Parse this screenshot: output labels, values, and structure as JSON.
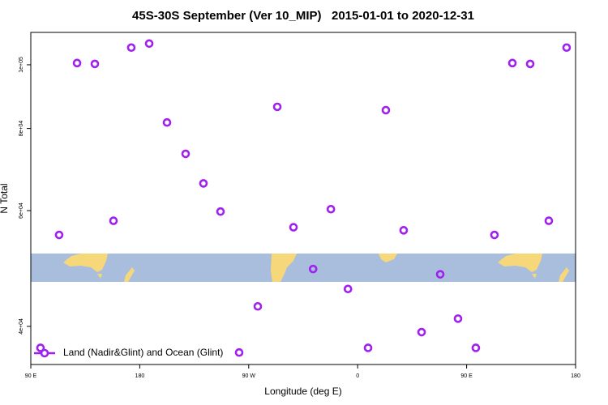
{
  "chart_data": {
    "type": "scatter",
    "title": "45S-30S September (Ver 10_MIP)   2015-01-01 to 2020-12-31",
    "x_label": "Longitude (deg E)",
    "y_label": "N Total",
    "log_y": true,
    "xlim": [
      90,
      540
    ],
    "xticks": [
      {
        "value": 90,
        "label": "90 E"
      },
      180,
      {
        "value": 270,
        "label": "90 W"
      },
      {
        "value": 360,
        "label": "0"
      },
      {
        "value": 450,
        "label": "90 E"
      },
      {
        "value": 540,
        "label": "180"
      }
    ],
    "ylim": [
      35000,
      112000
    ],
    "yticks": [
      {
        "value": 40000,
        "label": "4e+04"
      },
      {
        "value": 60000,
        "label": "6e+04"
      },
      {
        "value": 80000,
        "label": "8e+04"
      },
      {
        "value": 100000,
        "label": "1e+05"
      }
    ],
    "legend": "bottom-left",
    "series": [
      {
        "name": "Land (Nadir&Glint) and Ocean (Glint)",
        "color": "#a020f0",
        "x": [
          98.0,
          113.4,
          128.2,
          142.9,
          158.3,
          173.0,
          187.8,
          202.5,
          217.9,
          232.6,
          246.7,
          262.1,
          277.5,
          293.6,
          307.0,
          323.2,
          337.9,
          352.0,
          368.6,
          383.3,
          398.0,
          412.8,
          428.2,
          442.9,
          457.6,
          473.0,
          487.8,
          502.5,
          517.9,
          532.6
        ],
        "values": [
          37100,
          55100,
          100600,
          100300,
          57900,
          106200,
          107700,
          81700,
          73200,
          66000,
          59800,
          36500,
          42900,
          86300,
          56600,
          48900,
          60300,
          45600,
          37100,
          85300,
          56000,
          39200,
          48000,
          41100,
          37100,
          55100,
          100600,
          100300,
          57900,
          106200
        ]
      }
    ]
  }
}
